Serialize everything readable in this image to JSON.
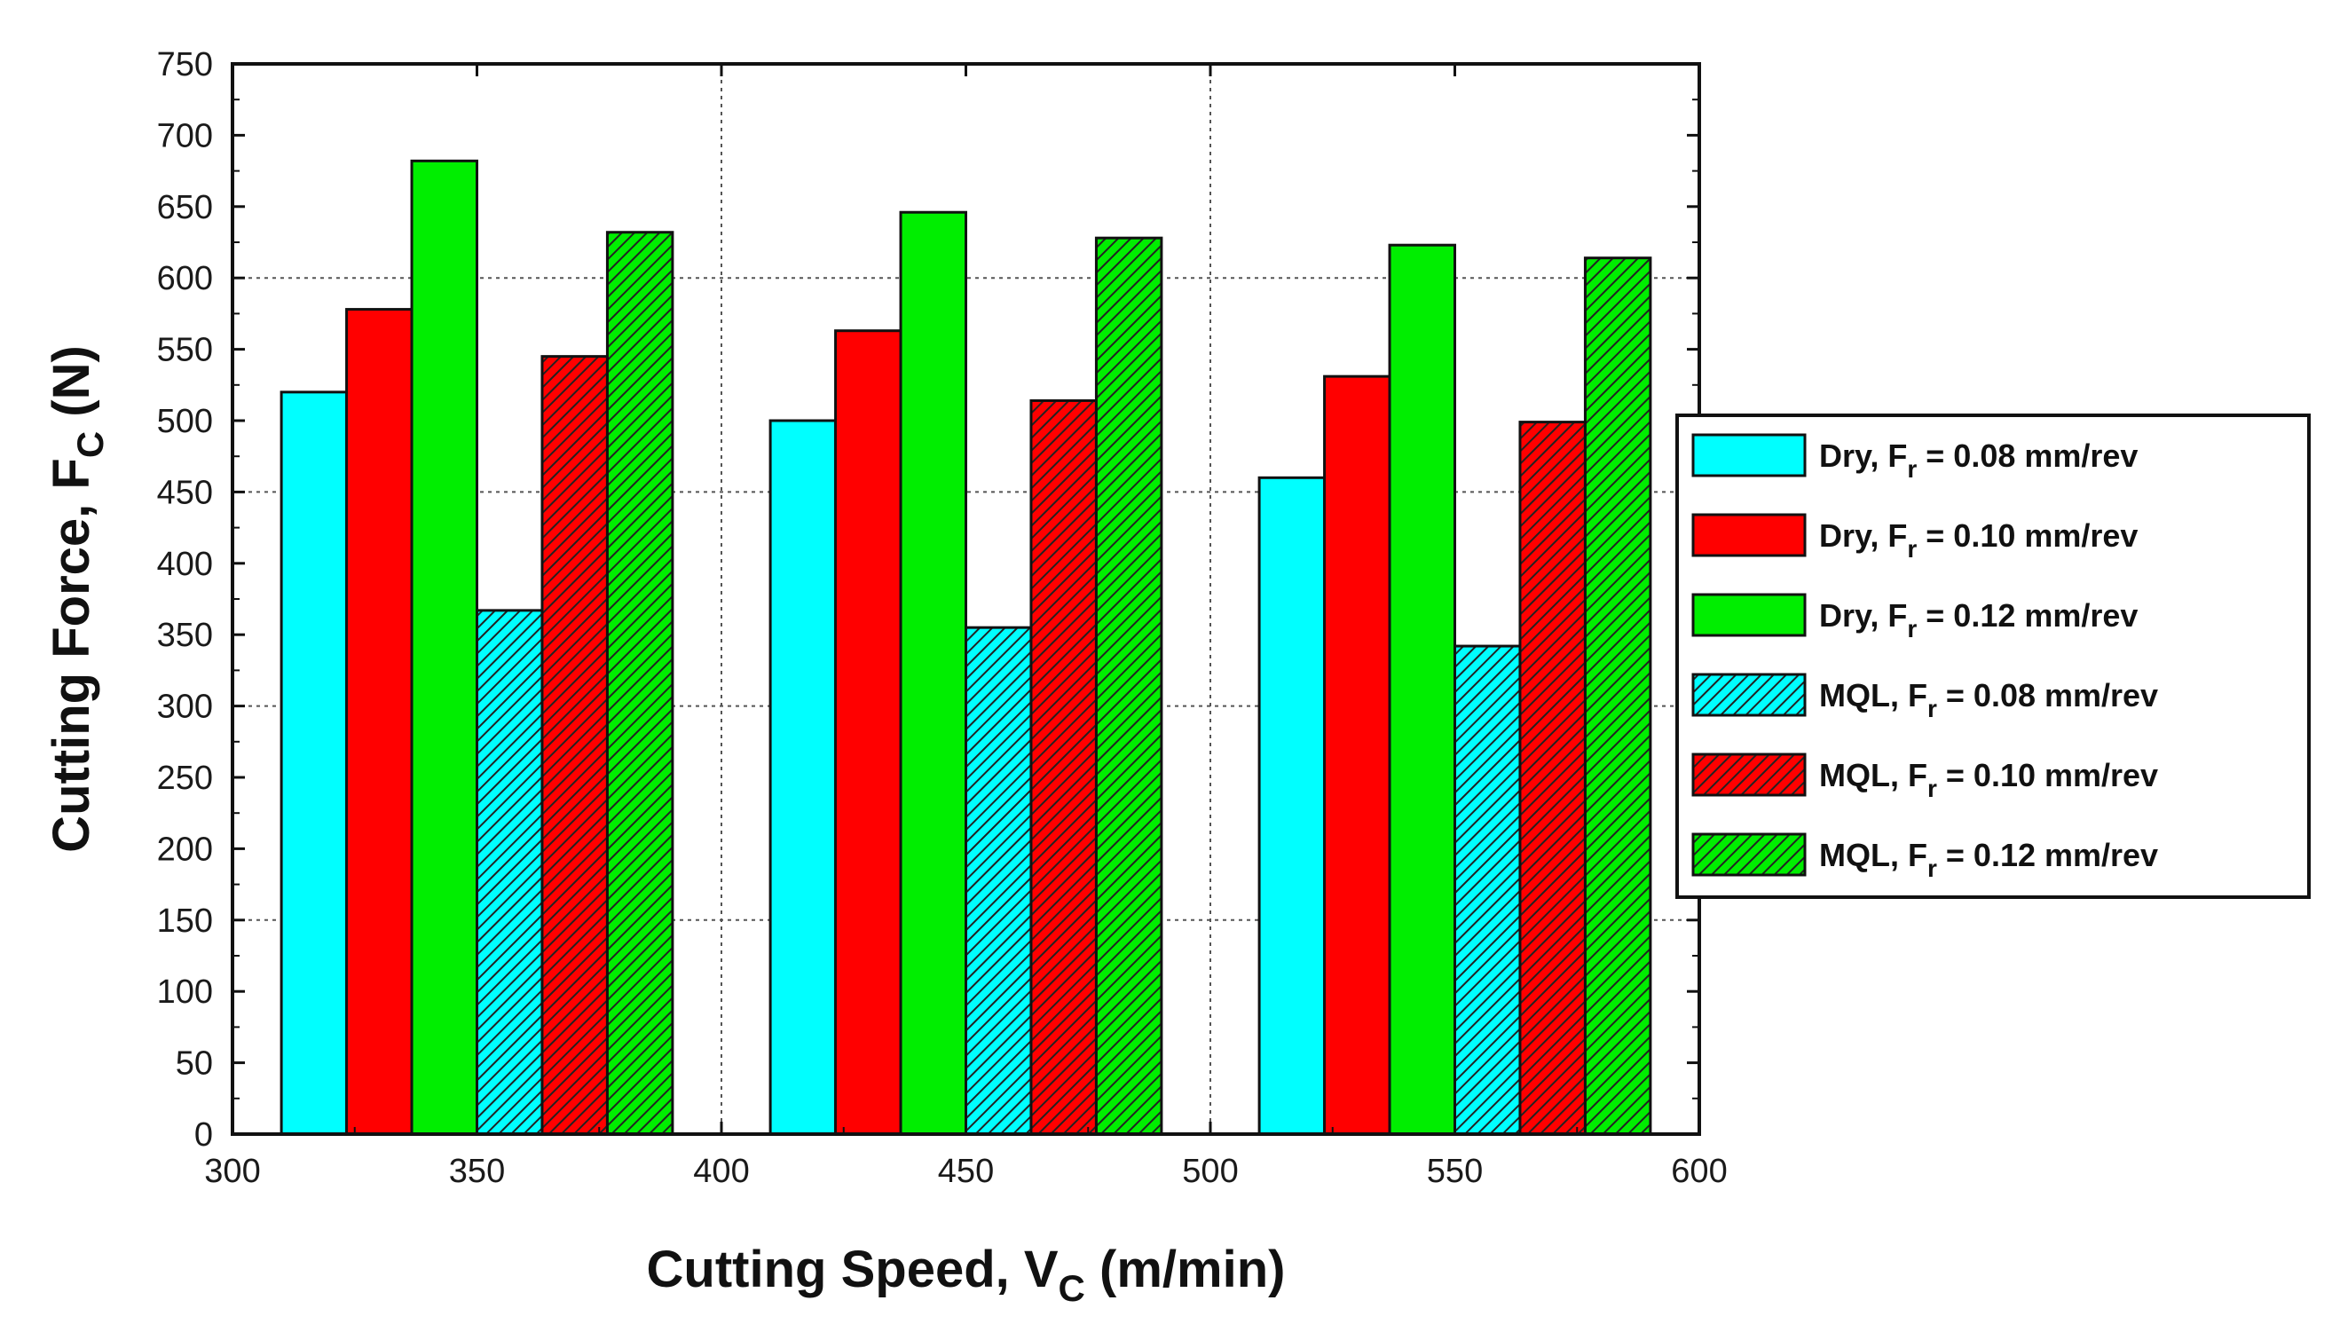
{
  "chart_data": {
    "type": "bar",
    "title": "",
    "xlabel": {
      "main": "Cutting Speed, V",
      "sub": "C",
      "unit": " (m/min)"
    },
    "ylabel": {
      "main": "Cutting Force, F",
      "sub": "C",
      "unit": " (N)"
    },
    "xlim": [
      300,
      600
    ],
    "ylim": [
      0,
      750
    ],
    "xticks": [
      "300",
      "350",
      "400",
      "450",
      "500",
      "550",
      "600"
    ],
    "yticks": [
      "0",
      "50",
      "100",
      "150",
      "200",
      "250",
      "300",
      "350",
      "400",
      "450",
      "500",
      "550",
      "600",
      "650",
      "700",
      "750"
    ],
    "grid": true,
    "legend_position": "right",
    "groups": [
      {
        "start": 310,
        "end": 390
      },
      {
        "start": 410,
        "end": 490
      },
      {
        "start": 510,
        "end": 590
      }
    ],
    "series": [
      {
        "name": "Dry, F",
        "sub": "r",
        "rest": " = 0.08 mm/rev",
        "color": "#00ffff",
        "hatched": false,
        "values": [
          520,
          500,
          460
        ]
      },
      {
        "name": "Dry, F",
        "sub": "r",
        "rest": " = 0.10 mm/rev",
        "color": "#ff0000",
        "hatched": false,
        "values": [
          578,
          563,
          531
        ]
      },
      {
        "name": "Dry, F",
        "sub": "r",
        "rest": " = 0.12 mm/rev",
        "color": "#00ee00",
        "hatched": false,
        "values": [
          682,
          646,
          623
        ]
      },
      {
        "name": "MQL, F",
        "sub": "r",
        "rest": " = 0.08 mm/rev",
        "color": "#00ffff",
        "hatched": true,
        "values": [
          367,
          355,
          342
        ]
      },
      {
        "name": "MQL, F",
        "sub": "r",
        "rest": " = 0.10 mm/rev",
        "color": "#ff0000",
        "hatched": true,
        "values": [
          545,
          514,
          499
        ]
      },
      {
        "name": "MQL, F",
        "sub": "r",
        "rest": " = 0.12 mm/rev",
        "color": "#00ee00",
        "hatched": true,
        "values": [
          632,
          628,
          614
        ]
      }
    ]
  }
}
